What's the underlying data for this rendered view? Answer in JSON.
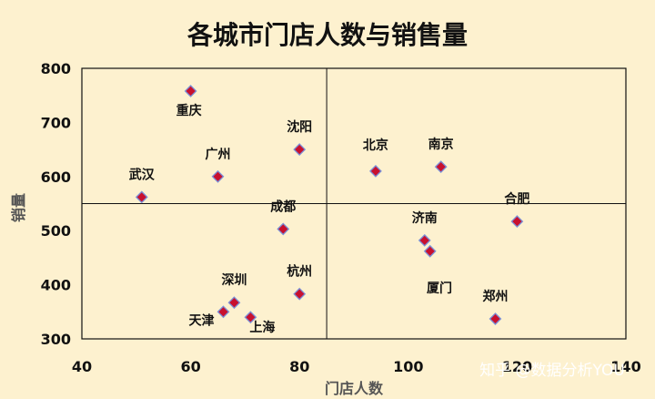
{
  "watermark": "知乎 @数据分析YOU",
  "chart_data": {
    "type": "scatter",
    "title": "各城市门店人数与销售量",
    "xlabel": "门店人数",
    "ylabel": "销量",
    "xlim": [
      40,
      140
    ],
    "ylim": [
      300,
      800
    ],
    "xticks": [
      40,
      60,
      80,
      100,
      120,
      140
    ],
    "yticks": [
      300,
      400,
      500,
      600,
      700,
      800
    ],
    "reference_lines": {
      "x": 85,
      "y": 550
    },
    "marker": {
      "shape": "diamond",
      "fill": "#c8102e",
      "stroke": "#7b8fd6"
    },
    "points": [
      {
        "label": "重庆",
        "x": 60,
        "y": 758
      },
      {
        "label": "沈阳",
        "x": 80,
        "y": 650
      },
      {
        "label": "广州",
        "x": 65,
        "y": 600
      },
      {
        "label": "武汉",
        "x": 51,
        "y": 562
      },
      {
        "label": "成都",
        "x": 77,
        "y": 503
      },
      {
        "label": "北京",
        "x": 94,
        "y": 610
      },
      {
        "label": "南京",
        "x": 106,
        "y": 618
      },
      {
        "label": "合肥",
        "x": 120,
        "y": 517
      },
      {
        "label": "济南",
        "x": 103,
        "y": 482
      },
      {
        "label": "",
        "x": 104,
        "y": 462
      },
      {
        "label": "杭州",
        "x": 80,
        "y": 383
      },
      {
        "label": "深圳",
        "x": 68,
        "y": 367
      },
      {
        "label": "天津",
        "x": 66,
        "y": 350
      },
      {
        "label": "上海",
        "x": 71,
        "y": 340
      },
      {
        "label": "厦门",
        "x": null,
        "y": null
      },
      {
        "label": "郑州",
        "x": 116,
        "y": 337
      }
    ]
  }
}
